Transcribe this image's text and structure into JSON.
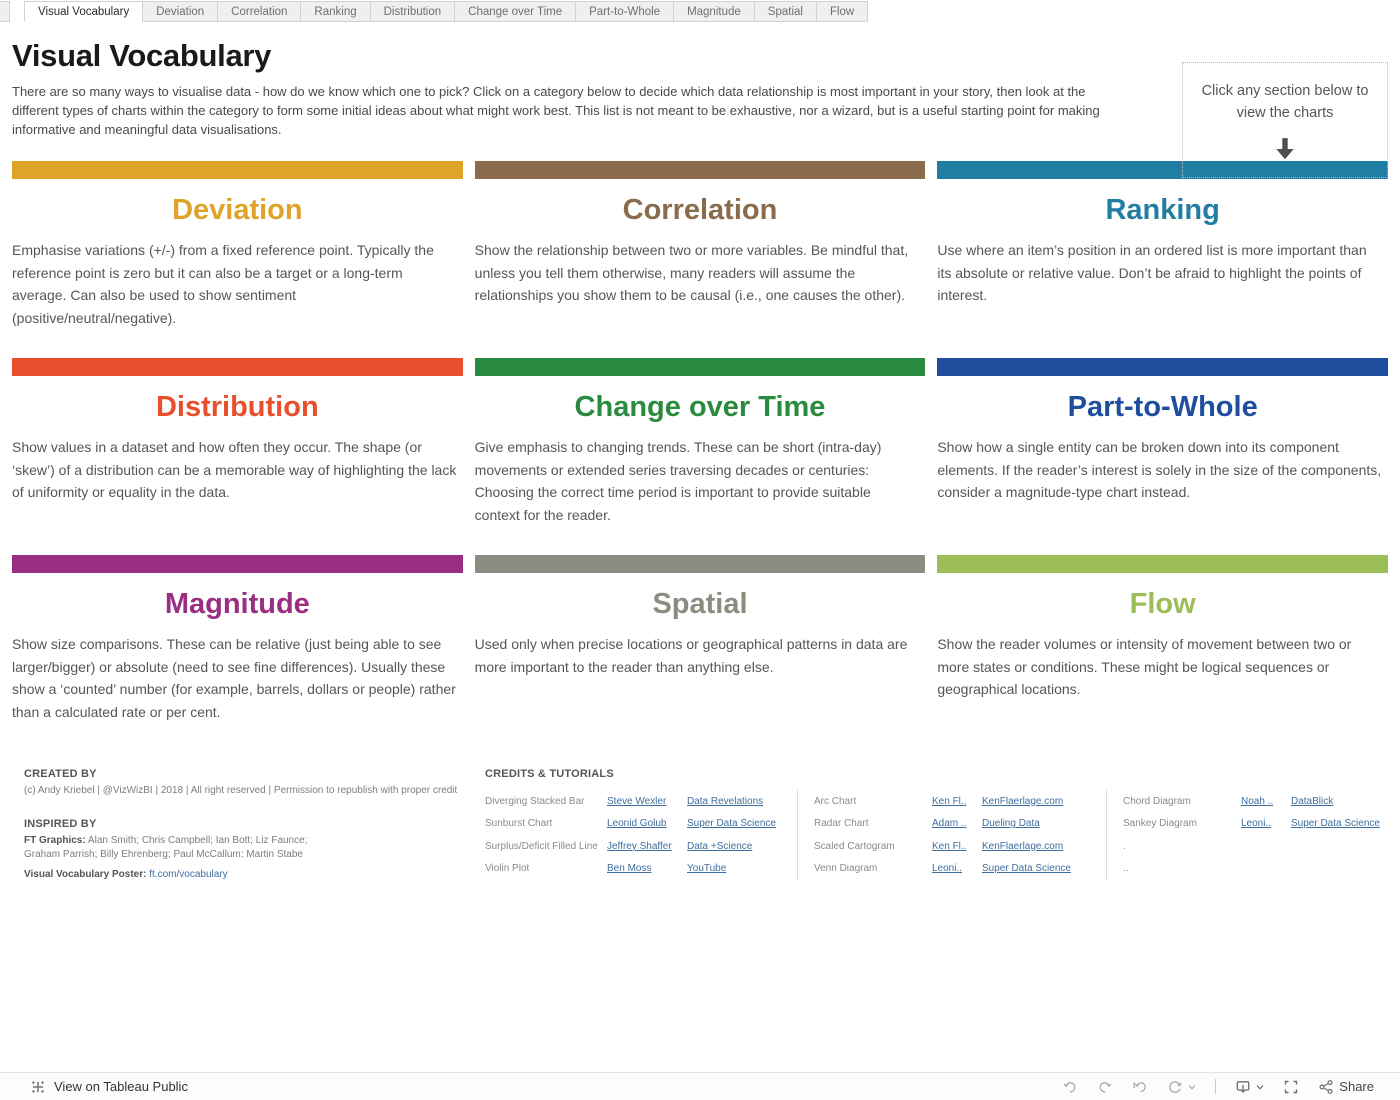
{
  "tabs": [
    {
      "label": "Visual Vocabulary",
      "active": true
    },
    {
      "label": "Deviation",
      "active": false
    },
    {
      "label": "Correlation",
      "active": false
    },
    {
      "label": "Ranking",
      "active": false
    },
    {
      "label": "Distribution",
      "active": false
    },
    {
      "label": "Change over Time",
      "active": false
    },
    {
      "label": "Part-to-Whole",
      "active": false
    },
    {
      "label": "Magnitude",
      "active": false
    },
    {
      "label": "Spatial",
      "active": false
    },
    {
      "label": "Flow",
      "active": false
    }
  ],
  "header": {
    "title": "Visual Vocabulary",
    "intro": "There are so many ways to visualise data - how do we know which one to pick? Click on a category below to decide which data relationship is most important in your story, then look at the different types of charts within the category to form some initial ideas about what might work best. This list is not meant to be exhaustive, nor a wizard, but is a useful starting point for making informative and meaningful data visualisations.",
    "callout": "Click any section below to view the charts"
  },
  "sections": [
    {
      "name": "Deviation",
      "color": "#DFA32A",
      "description": "Emphasise variations (+/-) from a fixed reference point. Typically the reference point is zero but it can also be a target or a long-term average. Can also be used to show sentiment (positive/neutral/negative)."
    },
    {
      "name": "Correlation",
      "color": "#8A6B4C",
      "description": "Show the relationship between two or more variables. Be mindful that, unless you tell them otherwise, many readers will assume the relationships you show them to be causal (i.e., one causes the other)."
    },
    {
      "name": "Ranking",
      "color": "#1F7EA1",
      "description": "Use where an item’s position in an ordered list is more important than its absolute or relative value. Don’t be afraid to highlight the points of interest."
    },
    {
      "name": "Distribution",
      "color": "#E8502D",
      "description": "Show values in a dataset and how often they occur. The shape (or ‘skew’) of a distribution can be a memorable way of highlighting the lack of uniformity or equality in the data."
    },
    {
      "name": "Change over Time",
      "color": "#2A8A3E",
      "description": "Give emphasis to changing trends. These can be short (intra-day) movements or extended series traversing decades or centuries: Choosing the correct time period is important to provide suitable context for the reader."
    },
    {
      "name": "Part-to-Whole",
      "color": "#1F4E9F",
      "description": "Show how a single entity can be broken down into its component elements. If the reader’s interest is solely in the size of the components, consider a magnitude-type chart instead."
    },
    {
      "name": "Magnitude",
      "color": "#9A2E82",
      "description": "Show size comparisons. These can be relative (just being able to see larger/bigger) or absolute (need to see fine differences). Usually these show a ‘counted’ number (for example, barrels, dollars or people) rather than a calculated rate or per cent."
    },
    {
      "name": "Spatial",
      "color": "#8B8B80",
      "description": "Used only when precise locations or geographical patterns in data are more important to the reader than anything else."
    },
    {
      "name": "Flow",
      "color": "#9CBE58",
      "description": "Show the reader volumes or intensity of movement between two or more states or conditions. These might be logical sequences or geographical locations."
    }
  ],
  "footer": {
    "created_by": {
      "heading": "CREATED BY",
      "text": "(c) Andy Kriebel | @VizWizBI | 2018 | All right reserved | Permission to republish with proper credit"
    },
    "inspired_by": {
      "heading": "INSPIRED BY",
      "ft_label": "FT Graphics:",
      "ft_names_line1": "Alan Smith; Chris Campbell; Ian Bott; Liz Faunce;",
      "ft_names_line2": "Graham Parrish; Billy Ehrenberg; Paul McCallum; Martin Stabe",
      "poster_label": "Visual Vocabulary Poster:",
      "poster_link": "ft.com/vocabulary"
    },
    "credits": {
      "heading": "CREDITS & TUTORIALS",
      "groups": [
        {
          "rows": [
            {
              "chart": "Diverging Stacked Bar",
              "author": "Steve Wexler",
              "site": "Data Revelations"
            },
            {
              "chart": "Sunburst Chart",
              "author": "Leonid Golub",
              "site": "Super Data Science"
            },
            {
              "chart": "Surplus/Deficit Filled Line",
              "author": "Jeffrey Shaffer",
              "site": "Data +Science"
            },
            {
              "chart": "Violin Plot",
              "author": "Ben Moss",
              "site": "YouTube"
            }
          ]
        },
        {
          "rows": [
            {
              "chart": "Arc Chart",
              "author": "Ken Fl..",
              "site": "KenFlaerlage.com"
            },
            {
              "chart": "Radar Chart",
              "author": "Adam ..",
              "site": "Dueling Data"
            },
            {
              "chart": "Scaled Cartogram",
              "author": "Ken Fl..",
              "site": "KenFlaerlage.com"
            },
            {
              "chart": "Venn Diagram",
              "author": "Leoni..",
              "site": "Super Data Science"
            }
          ]
        },
        {
          "rows": [
            {
              "chart": "Chord Diagram",
              "author": "Noah ..",
              "site": "DataBlick"
            },
            {
              "chart": "Sankey Diagram",
              "author": "Leoni..",
              "site": "Super Data Science"
            },
            {
              "chart": ".",
              "author": "",
              "site": ""
            },
            {
              "chart": "..",
              "author": "",
              "site": ""
            }
          ]
        }
      ]
    }
  },
  "toolbar": {
    "view_label": "View on Tableau Public",
    "share_label": "Share",
    "icons": [
      {
        "icon": "undo",
        "muted": true
      },
      {
        "icon": "redo",
        "muted": true
      },
      {
        "icon": "revert",
        "muted": true
      },
      {
        "icon": "refresh",
        "muted": true,
        "caret": true
      },
      {
        "sep": true
      },
      {
        "icon": "download",
        "muted": false,
        "caret": true
      },
      {
        "icon": "fullscreen",
        "muted": false
      },
      {
        "icon": "share",
        "muted": false,
        "label": true
      }
    ]
  },
  "colors": {
    "link": "#3f6e9e",
    "arrow": "#4f4f4f"
  }
}
